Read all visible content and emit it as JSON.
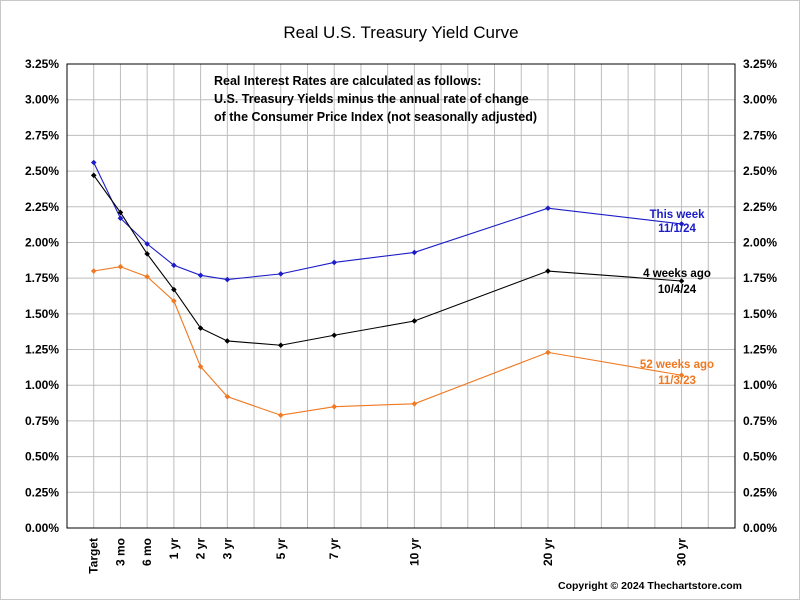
{
  "chart_data": {
    "type": "line",
    "title": "Real U.S. Treasury Yield Curve",
    "categories": [
      "Target",
      "3 mo",
      "6 mo",
      "1 yr",
      "2 yr",
      "3 yr",
      "5 yr",
      "7 yr",
      "10 yr",
      "20 yr",
      "30 yr"
    ],
    "category_positions": [
      0,
      1,
      2,
      3,
      4,
      5,
      7,
      9,
      12,
      17,
      22
    ],
    "y_ticks": [
      "0.00%",
      "0.25%",
      "0.50%",
      "0.75%",
      "1.00%",
      "1.25%",
      "1.50%",
      "1.75%",
      "2.00%",
      "2.25%",
      "2.50%",
      "2.75%",
      "3.00%",
      "3.25%"
    ],
    "ylim": [
      0,
      3.25
    ],
    "grid": true,
    "series": [
      {
        "name": "This week",
        "date": "11/1/24",
        "color": "#1c1cc8",
        "values": [
          2.56,
          2.17,
          1.99,
          1.84,
          1.77,
          1.74,
          1.78,
          1.86,
          1.93,
          2.24,
          2.13
        ]
      },
      {
        "name": "4 weeks ago",
        "date": "10/4/24",
        "color": "#000000",
        "values": [
          2.47,
          2.21,
          1.92,
          1.67,
          1.4,
          1.31,
          1.28,
          1.35,
          1.45,
          1.8,
          1.73
        ]
      },
      {
        "name": "52 weeks ago",
        "date": "11/3/23",
        "color": "#f07820",
        "values": [
          1.8,
          1.83,
          1.76,
          1.59,
          1.13,
          0.92,
          0.79,
          0.85,
          0.87,
          1.23,
          1.07
        ]
      }
    ],
    "annotation": [
      "Real Interest Rates are calculated as follows:",
      "U.S. Treasury Yields minus the annual rate of change",
      "of the Consumer Price Index (not seasonally adjusted)"
    ],
    "copyright": "Copyright © 2024 Thechartstore.com"
  }
}
